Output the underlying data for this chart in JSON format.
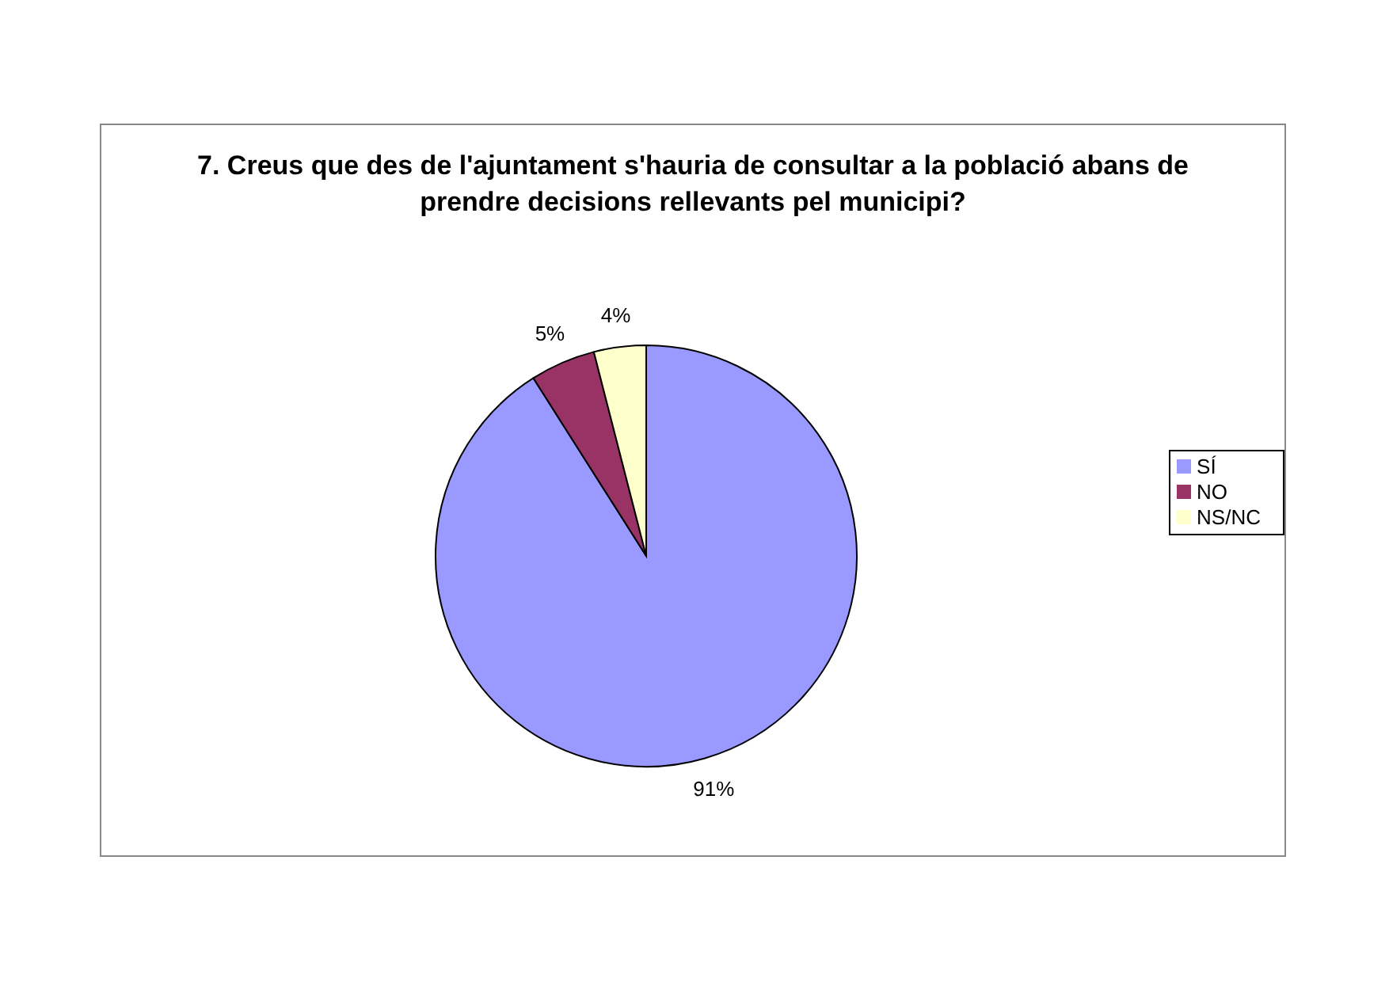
{
  "chart_data": {
    "type": "pie",
    "title": "7. Creus que des de l'ajuntament s'hauria de consultar a la població abans de prendre decisions rellevants pel municipi?",
    "categories": [
      "SÍ",
      "NO",
      "NS/NC"
    ],
    "values": [
      91,
      5,
      4
    ],
    "colors": [
      "#9999ff",
      "#993366",
      "#ffffcc"
    ],
    "value_labels": [
      "91%",
      "5%",
      "4%"
    ],
    "legend": "right"
  }
}
